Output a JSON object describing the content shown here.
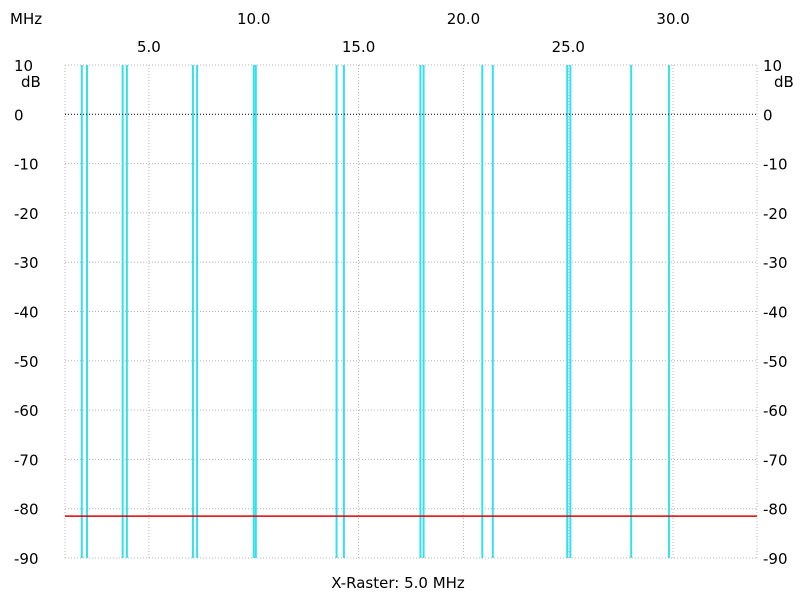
{
  "chart_data": {
    "type": "line",
    "title": "",
    "xlabel": "X-Raster: 5.0 MHz",
    "x_unit": "MHz",
    "y_unit": "dB",
    "xlim": [
      1.0,
      34.0
    ],
    "ylim": [
      -90,
      10
    ],
    "grid": true,
    "x_ticks": [
      {
        "value": 5.0,
        "label": "5.0",
        "row": "lower"
      },
      {
        "value": 10.0,
        "label": "10.0",
        "row": "upper"
      },
      {
        "value": 15.0,
        "label": "15.0",
        "row": "lower"
      },
      {
        "value": 20.0,
        "label": "20.0",
        "row": "upper"
      },
      {
        "value": 25.0,
        "label": "25.0",
        "row": "lower"
      },
      {
        "value": 30.0,
        "label": "30.0",
        "row": "upper"
      }
    ],
    "y_ticks": [
      10,
      0,
      -10,
      -20,
      -30,
      -40,
      -50,
      -60,
      -70,
      -80,
      -90
    ],
    "y_tick_labels": [
      "10",
      "0",
      "-10",
      "-20",
      "-30",
      "-40",
      "-50",
      "-60",
      "-70",
      "-80",
      "-90"
    ],
    "reference_line": {
      "y": 0,
      "style": "dotted",
      "color": "#000000"
    },
    "markers": {
      "color": "#33e0f0",
      "x": [
        1.8,
        2.05,
        3.75,
        3.95,
        7.1,
        7.3,
        10.0,
        10.1,
        13.95,
        14.3,
        17.95,
        18.1,
        20.9,
        21.4,
        24.95,
        25.1,
        28.0,
        29.8
      ]
    },
    "series": [
      {
        "color": "#e00000",
        "x": [
          1.0,
          34.0
        ],
        "y": [
          -81.5,
          -81.5
        ]
      }
    ]
  }
}
